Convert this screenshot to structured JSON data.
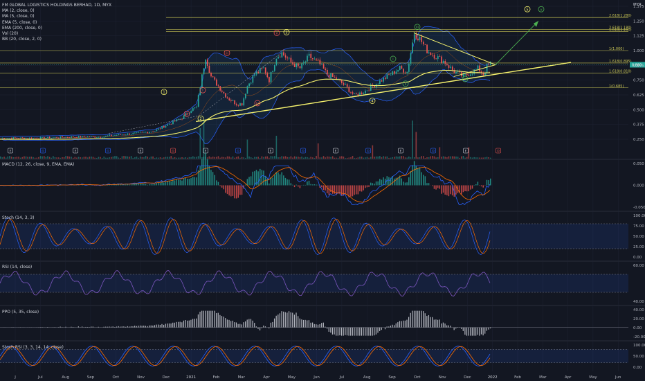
{
  "chart_title": "FM GLOBAL LOGISTICS HOLDINGS BERHAD, 1D, MYX",
  "currency_label": "MYR",
  "indicators": [
    "MA (2, close, 0)",
    "MA (5, close, 0)",
    "EMA (5, close, 0)",
    "EMA (200, close, 0)",
    "Vol (20)",
    "BB (20, close, 2, 0)"
  ],
  "colors": {
    "bg": "#131722",
    "grid": "#1f2433",
    "candle_up": "#26a69a",
    "candle_dn": "#ef5350",
    "bb": "#2962ff",
    "bbfill": "rgba(33,150,243,0.10)",
    "ema200": "#f7f36e",
    "macd": "#2962ff",
    "signal": "#ff6d00",
    "stoch_k": "#2962ff",
    "stoch_d": "#ff6d00",
    "rsi": "#7e57c2",
    "fib": "#c7c354",
    "wave_green": "#4caf50",
    "wave_red": "#ef5350",
    "wave_yellow": "#f7f36e"
  },
  "chart_data": [
    {
      "type": "candlestick",
      "panel": "price",
      "x_tick_labels": [
        "J",
        "Jul",
        "Aug",
        "Sep",
        "Oct",
        "Nov",
        "Dec",
        "2021",
        "Feb",
        "Mar",
        "Apr",
        "May",
        "Jun",
        "Jul",
        "Aug",
        "Sep",
        "Oct",
        "Nov",
        "Dec",
        "2022",
        "Feb",
        "Mar",
        "Apr",
        "May",
        "Jun"
      ],
      "y_tick_labels": [
        "1.375",
        "1.250",
        "1.125",
        "1.000",
        "0.875",
        "0.750",
        "0.625",
        "0.500",
        "0.375",
        "0.250"
      ],
      "current_price_label": "0.880",
      "price_keypoints": [
        [
          0,
          0.26
        ],
        [
          22,
          0.26
        ],
        [
          40,
          0.27
        ],
        [
          55,
          0.27
        ],
        [
          60,
          0.28
        ],
        [
          75,
          0.3
        ],
        [
          85,
          0.32
        ],
        [
          90,
          0.36
        ],
        [
          100,
          0.43
        ],
        [
          105,
          0.5
        ],
        [
          108,
          0.52
        ],
        [
          110,
          0.7
        ],
        [
          113,
          0.95
        ],
        [
          116,
          0.78
        ],
        [
          120,
          0.7
        ],
        [
          125,
          0.6
        ],
        [
          130,
          0.55
        ],
        [
          133,
          0.55
        ],
        [
          136,
          0.7
        ],
        [
          140,
          0.8
        ],
        [
          145,
          0.85
        ],
        [
          148,
          0.75
        ],
        [
          152,
          0.95
        ],
        [
          155,
          0.98
        ],
        [
          160,
          0.9
        ],
        [
          165,
          0.85
        ],
        [
          170,
          0.95
        ],
        [
          175,
          0.9
        ],
        [
          180,
          0.8
        ],
        [
          186,
          0.75
        ],
        [
          190,
          0.7
        ],
        [
          195,
          0.62
        ],
        [
          200,
          0.65
        ],
        [
          205,
          0.7
        ],
        [
          210,
          0.75
        ],
        [
          215,
          0.8
        ],
        [
          220,
          0.85
        ],
        [
          224,
          0.82
        ],
        [
          228,
          1.15
        ],
        [
          231,
          1.1
        ],
        [
          235,
          1.0
        ],
        [
          240,
          0.95
        ],
        [
          245,
          0.9
        ],
        [
          250,
          0.82
        ],
        [
          255,
          0.78
        ],
        [
          260,
          0.82
        ],
        [
          263,
          0.85
        ],
        [
          266,
          0.8
        ],
        [
          268,
          0.86
        ],
        [
          270,
          0.89
        ]
      ],
      "volume_spikes": [
        [
          110,
          0.8
        ],
        [
          112,
          1.0
        ],
        [
          136,
          0.5
        ],
        [
          152,
          0.6
        ],
        [
          175,
          0.4
        ],
        [
          205,
          0.35
        ],
        [
          227,
          1.0
        ],
        [
          229,
          0.7
        ],
        [
          242,
          0.3
        ],
        [
          258,
          0.3
        ]
      ],
      "fib_levels": [
        {
          "label": "2.618(1.280)",
          "price": 1.28
        },
        {
          "label": "2.618(1.180)",
          "price": 1.18
        },
        {
          "label": "1.618(1.160)",
          "price": 1.16
        },
        {
          "label": "1(1.000)",
          "price": 1.0
        },
        {
          "label": "1.618(0.895)",
          "price": 0.895
        },
        {
          "label": "1.618(0.810)",
          "price": 0.81
        },
        {
          "label": "1(0.685)",
          "price": 0.685
        }
      ],
      "wave_labels": [
        {
          "text": "1",
          "style": "yellow"
        },
        {
          "text": "2",
          "style": "yellow"
        },
        {
          "text": "3",
          "style": "yellow"
        },
        {
          "text": "4",
          "style": "yellow"
        },
        {
          "text": "5",
          "style": "yellow"
        },
        {
          "text": "i",
          "style": "red"
        },
        {
          "text": "ii",
          "style": "red"
        },
        {
          "text": "iii",
          "style": "red"
        },
        {
          "text": "iv",
          "style": "red"
        },
        {
          "text": "v",
          "style": "red"
        },
        {
          "text": "i",
          "style": "green"
        },
        {
          "text": "ii",
          "style": "green"
        },
        {
          "text": "iii",
          "style": "green"
        },
        {
          "text": "iv",
          "style": "green"
        },
        {
          "text": "v",
          "style": "green"
        }
      ],
      "event_markers": [
        "E",
        "D",
        "E",
        "D",
        "E",
        "D",
        "E",
        "D",
        "E",
        "D",
        "E",
        "D",
        "E",
        "D",
        "E",
        "D"
      ]
    },
    {
      "type": "line",
      "panel": "MACD",
      "label": "MACD (12, 26, close, 9, EMA, EMA)",
      "y_tick_labels": [
        "0.050",
        "0.000",
        "-0.050"
      ]
    },
    {
      "type": "line",
      "panel": "Stoch",
      "label": "Stoch (14, 3, 3)",
      "y_tick_labels": [
        "100.00",
        "75.00",
        "50.00",
        "25.00",
        "0.00"
      ]
    },
    {
      "type": "line",
      "panel": "RSI",
      "label": "RSI (14, close)",
      "y_tick_labels": [
        "60.00",
        "40.00"
      ]
    },
    {
      "type": "bar",
      "panel": "PPO",
      "label": "PPO (5, 35, close)",
      "y_tick_labels": [
        "40.00",
        "20.00",
        "0.00",
        "-20.00"
      ]
    },
    {
      "type": "line",
      "panel": "StochRSI",
      "label": "Stoch RSI (3, 3, 14, 14, close)",
      "y_tick_labels": [
        "100.00",
        "50.00",
        "0.00"
      ]
    }
  ]
}
